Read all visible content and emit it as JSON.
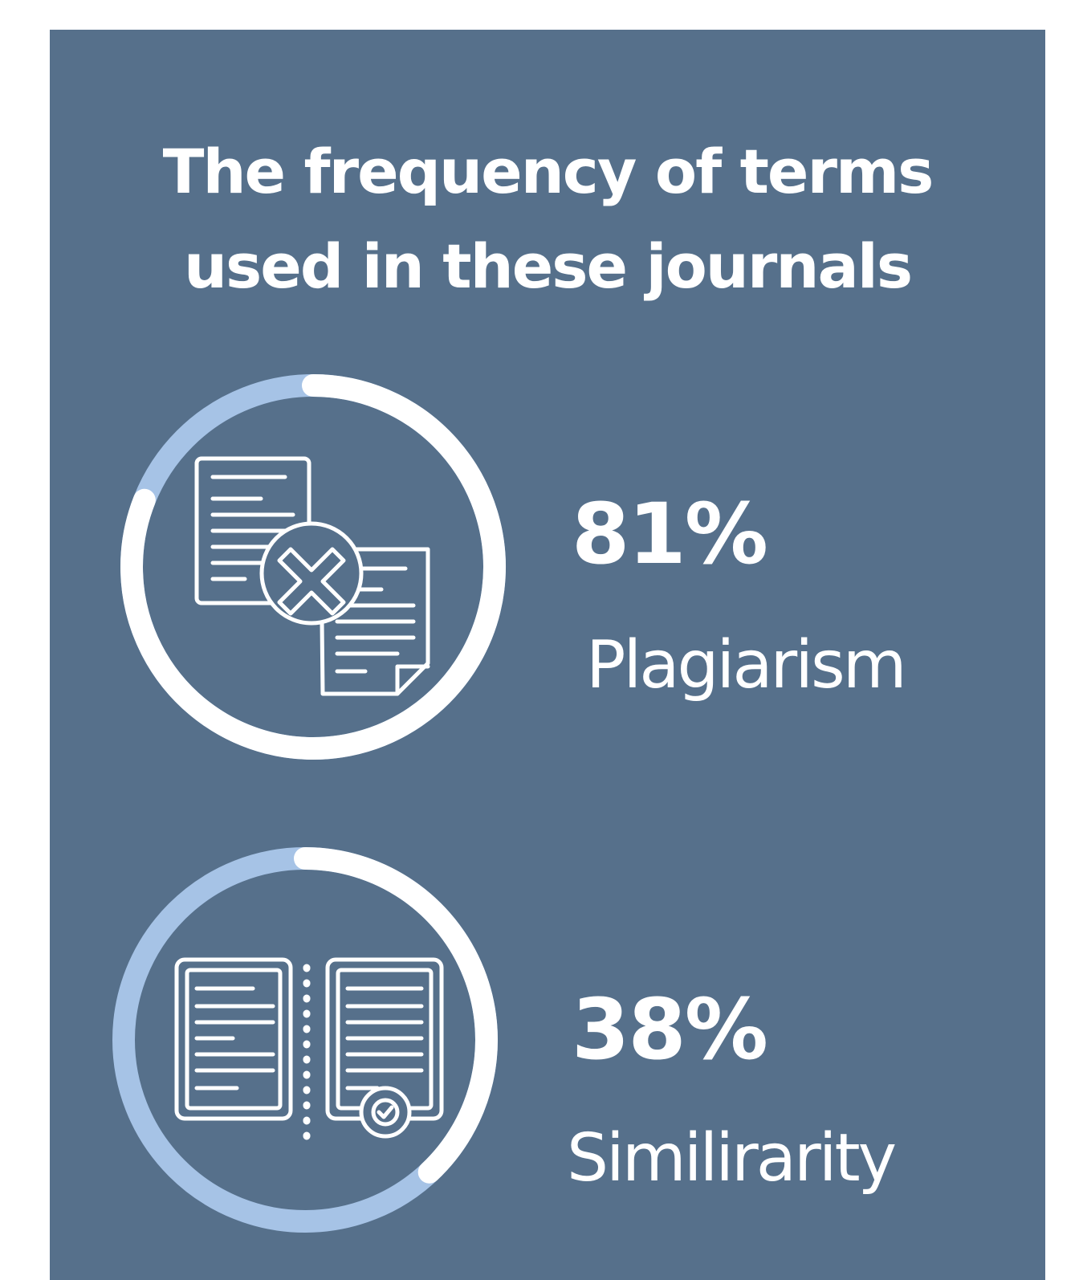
{
  "colors": {
    "panel": "#56708b",
    "ring_fill": "#ffffff",
    "ring_track": "#a6c3e6",
    "text": "#ffffff"
  },
  "title_lines": [
    "The frequency of terms",
    "used in these journals"
  ],
  "chart_data": {
    "type": "pie",
    "title": "The frequency of terms used in these journals",
    "items": [
      {
        "label": "Plagiarism",
        "value": 81,
        "value_label": "81%",
        "icon": "document-reject-icon"
      },
      {
        "label": "Similirarity",
        "value": 38,
        "value_label": "38%",
        "icon": "document-compare-icon"
      }
    ]
  }
}
